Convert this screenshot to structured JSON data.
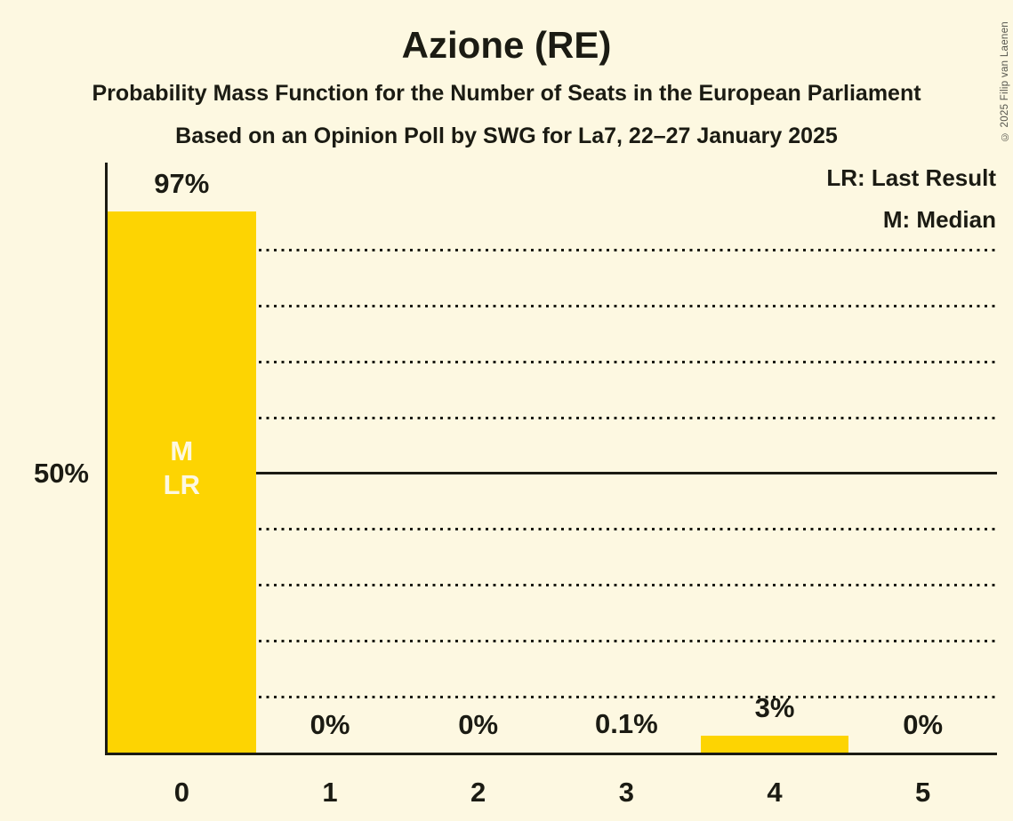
{
  "page": {
    "title": "Azione (RE)",
    "subtitle": "Probability Mass Function for the Number of Seats in the European Parliament",
    "poll_line": "Based on an Opinion Poll by SWG for La7, 22–27 January 2025",
    "copyright": "© 2025 Filip van Laenen"
  },
  "legend": {
    "last_result": "LR: Last Result",
    "median": "M: Median"
  },
  "y_axis": {
    "mid_label": "50%"
  },
  "colors": {
    "background": "#FDF8E1",
    "bar": "#FDD402",
    "text": "#1B1B13",
    "bar_label_text": "#FDF8E1",
    "copyright_text": "#55554D"
  },
  "chart_data": {
    "type": "bar",
    "title": "Azione (RE)",
    "subtitle": "Probability Mass Function for the Number of Seats in the European Parliament",
    "source_line": "Based on an Opinion Poll by SWG for La7, 22–27 January 2025",
    "categories": [
      "0",
      "1",
      "2",
      "3",
      "4",
      "5"
    ],
    "values": [
      97,
      0,
      0,
      0.1,
      3,
      0
    ],
    "value_labels": [
      "97%",
      "0%",
      "0%",
      "0.1%",
      "3%",
      "0%"
    ],
    "xlabel": "",
    "ylabel": "",
    "ylim": [
      0,
      105.7
    ],
    "ytick_labels": [
      "50%"
    ],
    "grid": {
      "style": "horizontal dotted",
      "dotted_percents": [
        10,
        20,
        30,
        40,
        60,
        70,
        80,
        90
      ],
      "solid_percent": 50
    },
    "legend": [
      "LR: Last Result",
      "M: Median"
    ],
    "legend_position": "top-right",
    "median_seat": 0,
    "last_result_seat": 0,
    "annotated_bar_index": 0,
    "annotation_lines": [
      "M",
      "LR"
    ]
  }
}
